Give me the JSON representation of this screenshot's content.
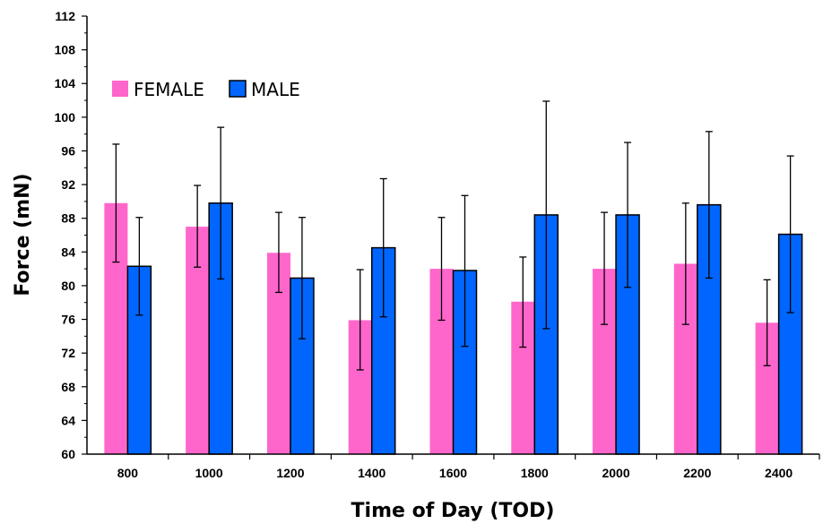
{
  "chart_data": {
    "type": "bar",
    "title": "",
    "xlabel": "Time of Day (TOD)",
    "ylabel": "Force (mN)",
    "ylim": [
      60,
      112
    ],
    "yticks": [
      60,
      64,
      68,
      72,
      76,
      80,
      84,
      88,
      92,
      96,
      100,
      104,
      108,
      112
    ],
    "categories": [
      "800",
      "1000",
      "1200",
      "1400",
      "1600",
      "1800",
      "2000",
      "2200",
      "2400"
    ],
    "series": [
      {
        "name": "FEMALE",
        "color": "#ff66cc",
        "values": [
          89.8,
          87.0,
          83.9,
          75.9,
          82.0,
          78.1,
          82.0,
          82.6,
          75.6
        ],
        "error_low": [
          82.8,
          82.2,
          79.2,
          70.0,
          75.9,
          72.7,
          75.4,
          75.4,
          70.5
        ],
        "error_high": [
          96.8,
          91.9,
          88.7,
          81.9,
          88.1,
          83.4,
          88.7,
          89.8,
          80.7
        ]
      },
      {
        "name": "MALE",
        "color": "#0066ff",
        "values": [
          82.3,
          89.8,
          80.9,
          84.5,
          81.8,
          88.4,
          88.4,
          89.6,
          86.1
        ],
        "error_low": [
          76.5,
          80.8,
          73.7,
          76.3,
          72.8,
          74.9,
          79.8,
          80.9,
          76.8
        ],
        "error_high": [
          88.1,
          98.8,
          88.1,
          92.7,
          90.7,
          101.9,
          97.0,
          98.3,
          95.4
        ]
      }
    ],
    "legend_position": "top-left",
    "grid": false
  }
}
